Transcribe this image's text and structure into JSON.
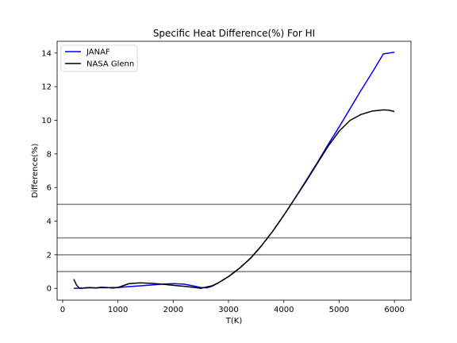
{
  "chart_data": {
    "type": "line",
    "title": "Specific Heat Difference(%) For HI",
    "xlabel": "T(K)",
    "ylabel": "Difference(%)",
    "xlim": [
      -100,
      6300
    ],
    "ylim": [
      -0.7,
      14.7
    ],
    "xticks": [
      0,
      1000,
      2000,
      3000,
      4000,
      5000,
      6000
    ],
    "yticks": [
      0,
      2,
      4,
      6,
      8,
      10,
      12,
      14
    ],
    "grid": false,
    "legend_position": "top-left",
    "hlines": [
      {
        "y": 1,
        "color": "#808080"
      },
      {
        "y": 2,
        "color": "#808080"
      },
      {
        "y": 3,
        "color": "#808080"
      },
      {
        "y": 5,
        "color": "#808080"
      }
    ],
    "series": [
      {
        "name": "JANAF",
        "color": "#0000ff",
        "x": [
          200,
          300,
          400,
          500,
          600,
          700,
          800,
          900,
          1000,
          1200,
          1400,
          1600,
          1800,
          2000,
          2200,
          2400,
          2500,
          2600,
          2700,
          2800,
          3000,
          3200,
          3400,
          3600,
          3800,
          4000,
          4200,
          4400,
          4600,
          4800,
          5000,
          5200,
          5400,
          5600,
          5800,
          6000
        ],
        "y": [
          0.0,
          0.01,
          0.02,
          0.03,
          0.03,
          0.04,
          0.04,
          0.05,
          0.05,
          0.1,
          0.15,
          0.2,
          0.25,
          0.28,
          0.25,
          0.12,
          0.05,
          0.03,
          0.12,
          0.3,
          0.7,
          1.2,
          1.8,
          2.55,
          3.4,
          4.35,
          5.35,
          6.4,
          7.45,
          8.55,
          9.6,
          10.7,
          11.8,
          12.85,
          13.95,
          14.05
        ]
      },
      {
        "name": "NASA Glenn",
        "color": "#000000",
        "x": [
          200,
          250,
          300,
          350,
          400,
          500,
          600,
          700,
          800,
          900,
          1000,
          1200,
          1400,
          1600,
          1800,
          2000,
          2200,
          2400,
          2500,
          2600,
          2700,
          2800,
          3000,
          3200,
          3400,
          3600,
          3800,
          4000,
          4200,
          4400,
          4600,
          4800,
          5000,
          5200,
          5400,
          5600,
          5800,
          5900,
          6000
        ],
        "y": [
          0.55,
          0.2,
          0.02,
          0.0,
          0.03,
          0.05,
          0.02,
          0.07,
          0.05,
          0.02,
          0.05,
          0.28,
          0.33,
          0.3,
          0.25,
          0.18,
          0.12,
          0.05,
          0.0,
          0.08,
          0.15,
          0.3,
          0.7,
          1.2,
          1.8,
          2.55,
          3.4,
          4.35,
          5.35,
          6.35,
          7.4,
          8.45,
          9.35,
          10.0,
          10.35,
          10.55,
          10.62,
          10.6,
          10.52
        ]
      }
    ]
  }
}
